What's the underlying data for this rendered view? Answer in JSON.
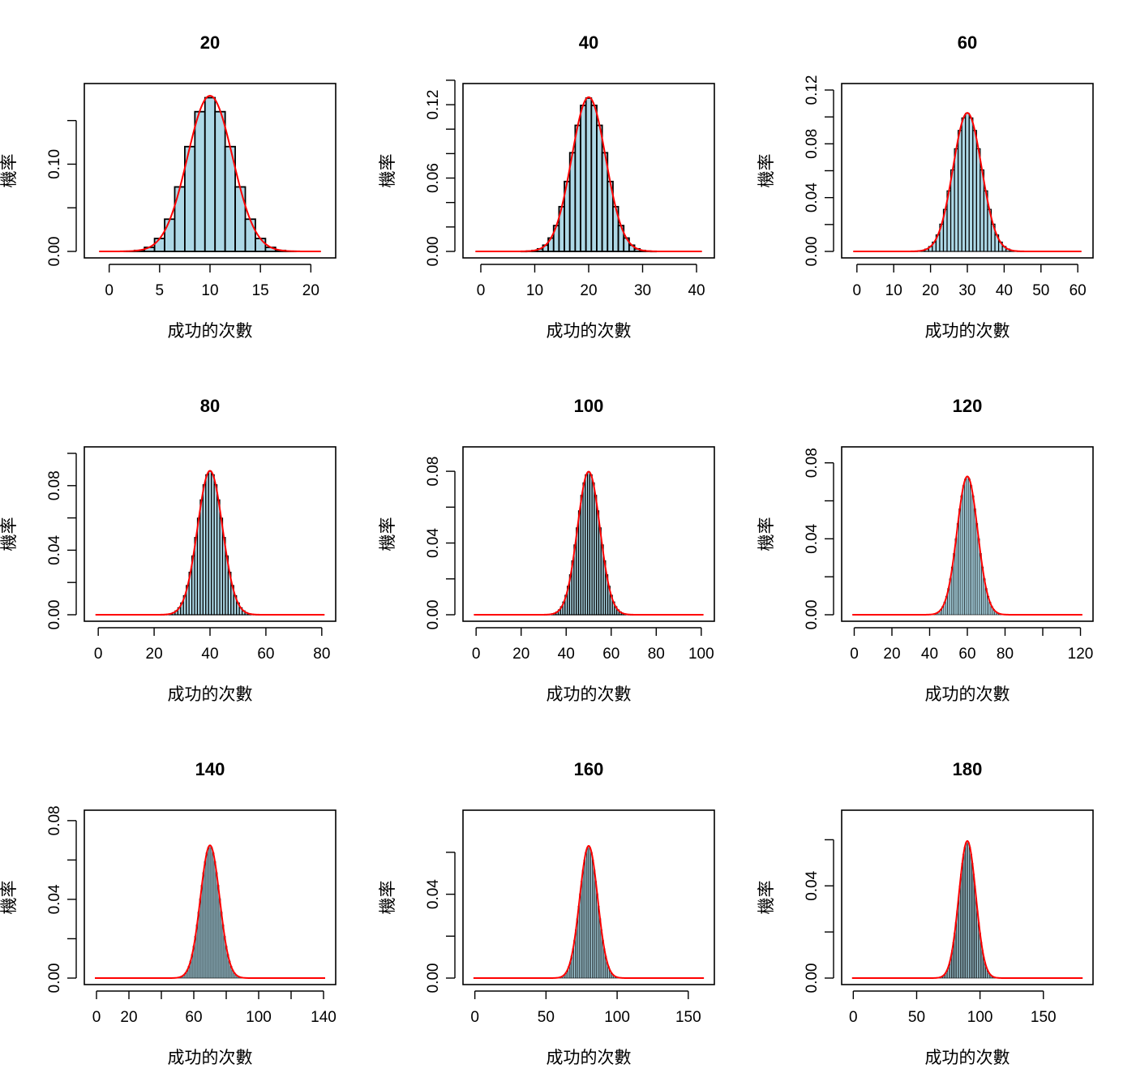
{
  "figure": {
    "rows": 3,
    "cols": 3
  },
  "chart_data": [
    {
      "type": "bar",
      "title": "20",
      "n": 20,
      "p": 0.5,
      "xlabel": "成功的次數",
      "ylabel": "機率",
      "xticks": [
        0,
        5,
        10,
        15,
        20
      ],
      "yticks": [
        0,
        0.05,
        0.1,
        0.15
      ],
      "ytick_labels": [
        "0.00",
        "",
        "0.10",
        ""
      ],
      "xlim": [
        -1.5,
        21.5
      ],
      "ylim": [
        0,
        0.185
      ],
      "bar_color": "#add8e6",
      "curve_color": "#ff0000",
      "curve": "normal(mean=np, sd=sqrt(np(1-p)))"
    },
    {
      "type": "bar",
      "title": "40",
      "n": 40,
      "p": 0.5,
      "xlabel": "成功的次數",
      "ylabel": "機率",
      "xticks": [
        0,
        10,
        20,
        30,
        40
      ],
      "yticks": [
        0,
        0.02,
        0.04,
        0.06,
        0.08,
        0.1,
        0.12,
        0.14
      ],
      "ytick_labels": [
        "0.00",
        "",
        "",
        "0.06",
        "",
        "",
        "0.12",
        ""
      ],
      "xlim": [
        -1.5,
        41.5
      ],
      "ylim": [
        0,
        0.132
      ],
      "bar_color": "#add8e6",
      "curve_color": "#ff0000",
      "curve": "normal(mean=np, sd=sqrt(np(1-p)))"
    },
    {
      "type": "bar",
      "title": "60",
      "n": 60,
      "p": 0.5,
      "xlabel": "成功的次數",
      "ylabel": "機率",
      "xticks": [
        0,
        10,
        20,
        30,
        40,
        50,
        60
      ],
      "yticks": [
        0,
        0.02,
        0.04,
        0.06,
        0.08,
        0.1,
        0.12
      ],
      "ytick_labels": [
        "0.00",
        "",
        "0.04",
        "",
        "0.08",
        "",
        "0.12"
      ],
      "xlim": [
        -1.5,
        61.5
      ],
      "ylim": [
        0,
        0.12
      ],
      "bar_color": "#add8e6",
      "curve_color": "#ff0000",
      "curve": "normal(mean=np, sd=sqrt(np(1-p)))"
    },
    {
      "type": "bar",
      "title": "80",
      "n": 80,
      "p": 0.5,
      "xlabel": "成功的次數",
      "ylabel": "機率",
      "xticks": [
        0,
        20,
        40,
        60,
        80
      ],
      "yticks": [
        0,
        0.02,
        0.04,
        0.06,
        0.08,
        0.1
      ],
      "ytick_labels": [
        "0.00",
        "",
        "0.04",
        "",
        "0.08",
        ""
      ],
      "xlim": [
        -1.5,
        81.5
      ],
      "ylim": [
        0,
        0.1
      ],
      "bar_color": "#add8e6",
      "curve_color": "#ff0000",
      "curve": "normal(mean=np, sd=sqrt(np(1-p)))"
    },
    {
      "type": "bar",
      "title": "100",
      "n": 100,
      "p": 0.5,
      "xlabel": "成功的次數",
      "ylabel": "機率",
      "xticks": [
        0,
        20,
        40,
        60,
        80,
        100
      ],
      "yticks": [
        0,
        0.02,
        0.04,
        0.06,
        0.08
      ],
      "ytick_labels": [
        "0.00",
        "",
        "0.04",
        "",
        "0.08"
      ],
      "xlim": [
        -1.5,
        101.5
      ],
      "ylim": [
        0,
        0.09
      ],
      "bar_color": "#add8e6",
      "curve_color": "#ff0000",
      "curve": "normal(mean=np, sd=sqrt(np(1-p)))"
    },
    {
      "type": "bar",
      "title": "120",
      "n": 120,
      "p": 0.5,
      "xlabel": "成功的次數",
      "ylabel": "機率",
      "xticks": [
        0,
        20,
        40,
        60,
        80,
        100,
        120
      ],
      "xtick_labels": [
        "0",
        "20",
        "40",
        "60",
        "80",
        "",
        "120"
      ],
      "yticks": [
        0,
        0.02,
        0.04,
        0.06,
        0.08
      ],
      "ytick_labels": [
        "0.00",
        "",
        "0.04",
        "",
        "0.08"
      ],
      "xlim": [
        -1.5,
        121.5
      ],
      "ylim": [
        0,
        0.085
      ],
      "bar_color": "#add8e6",
      "curve_color": "#ff0000",
      "curve": "normal(mean=np, sd=sqrt(np(1-p)))"
    },
    {
      "type": "bar",
      "title": "140",
      "n": 140,
      "p": 0.5,
      "xlabel": "成功的次數",
      "ylabel": "機率",
      "xticks": [
        0,
        20,
        40,
        60,
        80,
        100,
        120,
        140
      ],
      "xtick_labels": [
        "0",
        "20",
        "",
        "60",
        "",
        "100",
        "",
        "140"
      ],
      "yticks": [
        0,
        0.02,
        0.04,
        0.06,
        0.08
      ],
      "ytick_labels": [
        "0.00",
        "",
        "0.04",
        "",
        "0.08"
      ],
      "xlim": [
        -1.5,
        141.5
      ],
      "ylim": [
        0,
        0.082
      ],
      "bar_color": "#add8e6",
      "curve_color": "#ff0000",
      "curve": "normal(mean=np, sd=sqrt(np(1-p)))"
    },
    {
      "type": "bar",
      "title": "160",
      "n": 160,
      "p": 0.5,
      "xlabel": "成功的次數",
      "ylabel": "機率",
      "xticks": [
        0,
        50,
        100,
        150
      ],
      "yticks": [
        0,
        0.02,
        0.04,
        0.06
      ],
      "ytick_labels": [
        "0.00",
        "",
        "0.04",
        ""
      ],
      "xlim": [
        -1.5,
        161.5
      ],
      "ylim": [
        0,
        0.077
      ],
      "bar_color": "#add8e6",
      "curve_color": "#ff0000",
      "curve": "normal(mean=np, sd=sqrt(np(1-p)))"
    },
    {
      "type": "bar",
      "title": "180",
      "n": 180,
      "p": 0.5,
      "xlabel": "成功的次數",
      "ylabel": "機率",
      "xticks": [
        0,
        50,
        100,
        150
      ],
      "yticks": [
        0,
        0.02,
        0.04,
        0.06
      ],
      "ytick_labels": [
        "0.00",
        "",
        "0.04",
        ""
      ],
      "xlim": [
        -1.5,
        181.5
      ],
      "ylim": [
        0,
        0.07
      ],
      "bar_color": "#add8e6",
      "curve_color": "#ff0000",
      "curve": "normal(mean=np, sd=sqrt(np(1-p)))"
    }
  ]
}
